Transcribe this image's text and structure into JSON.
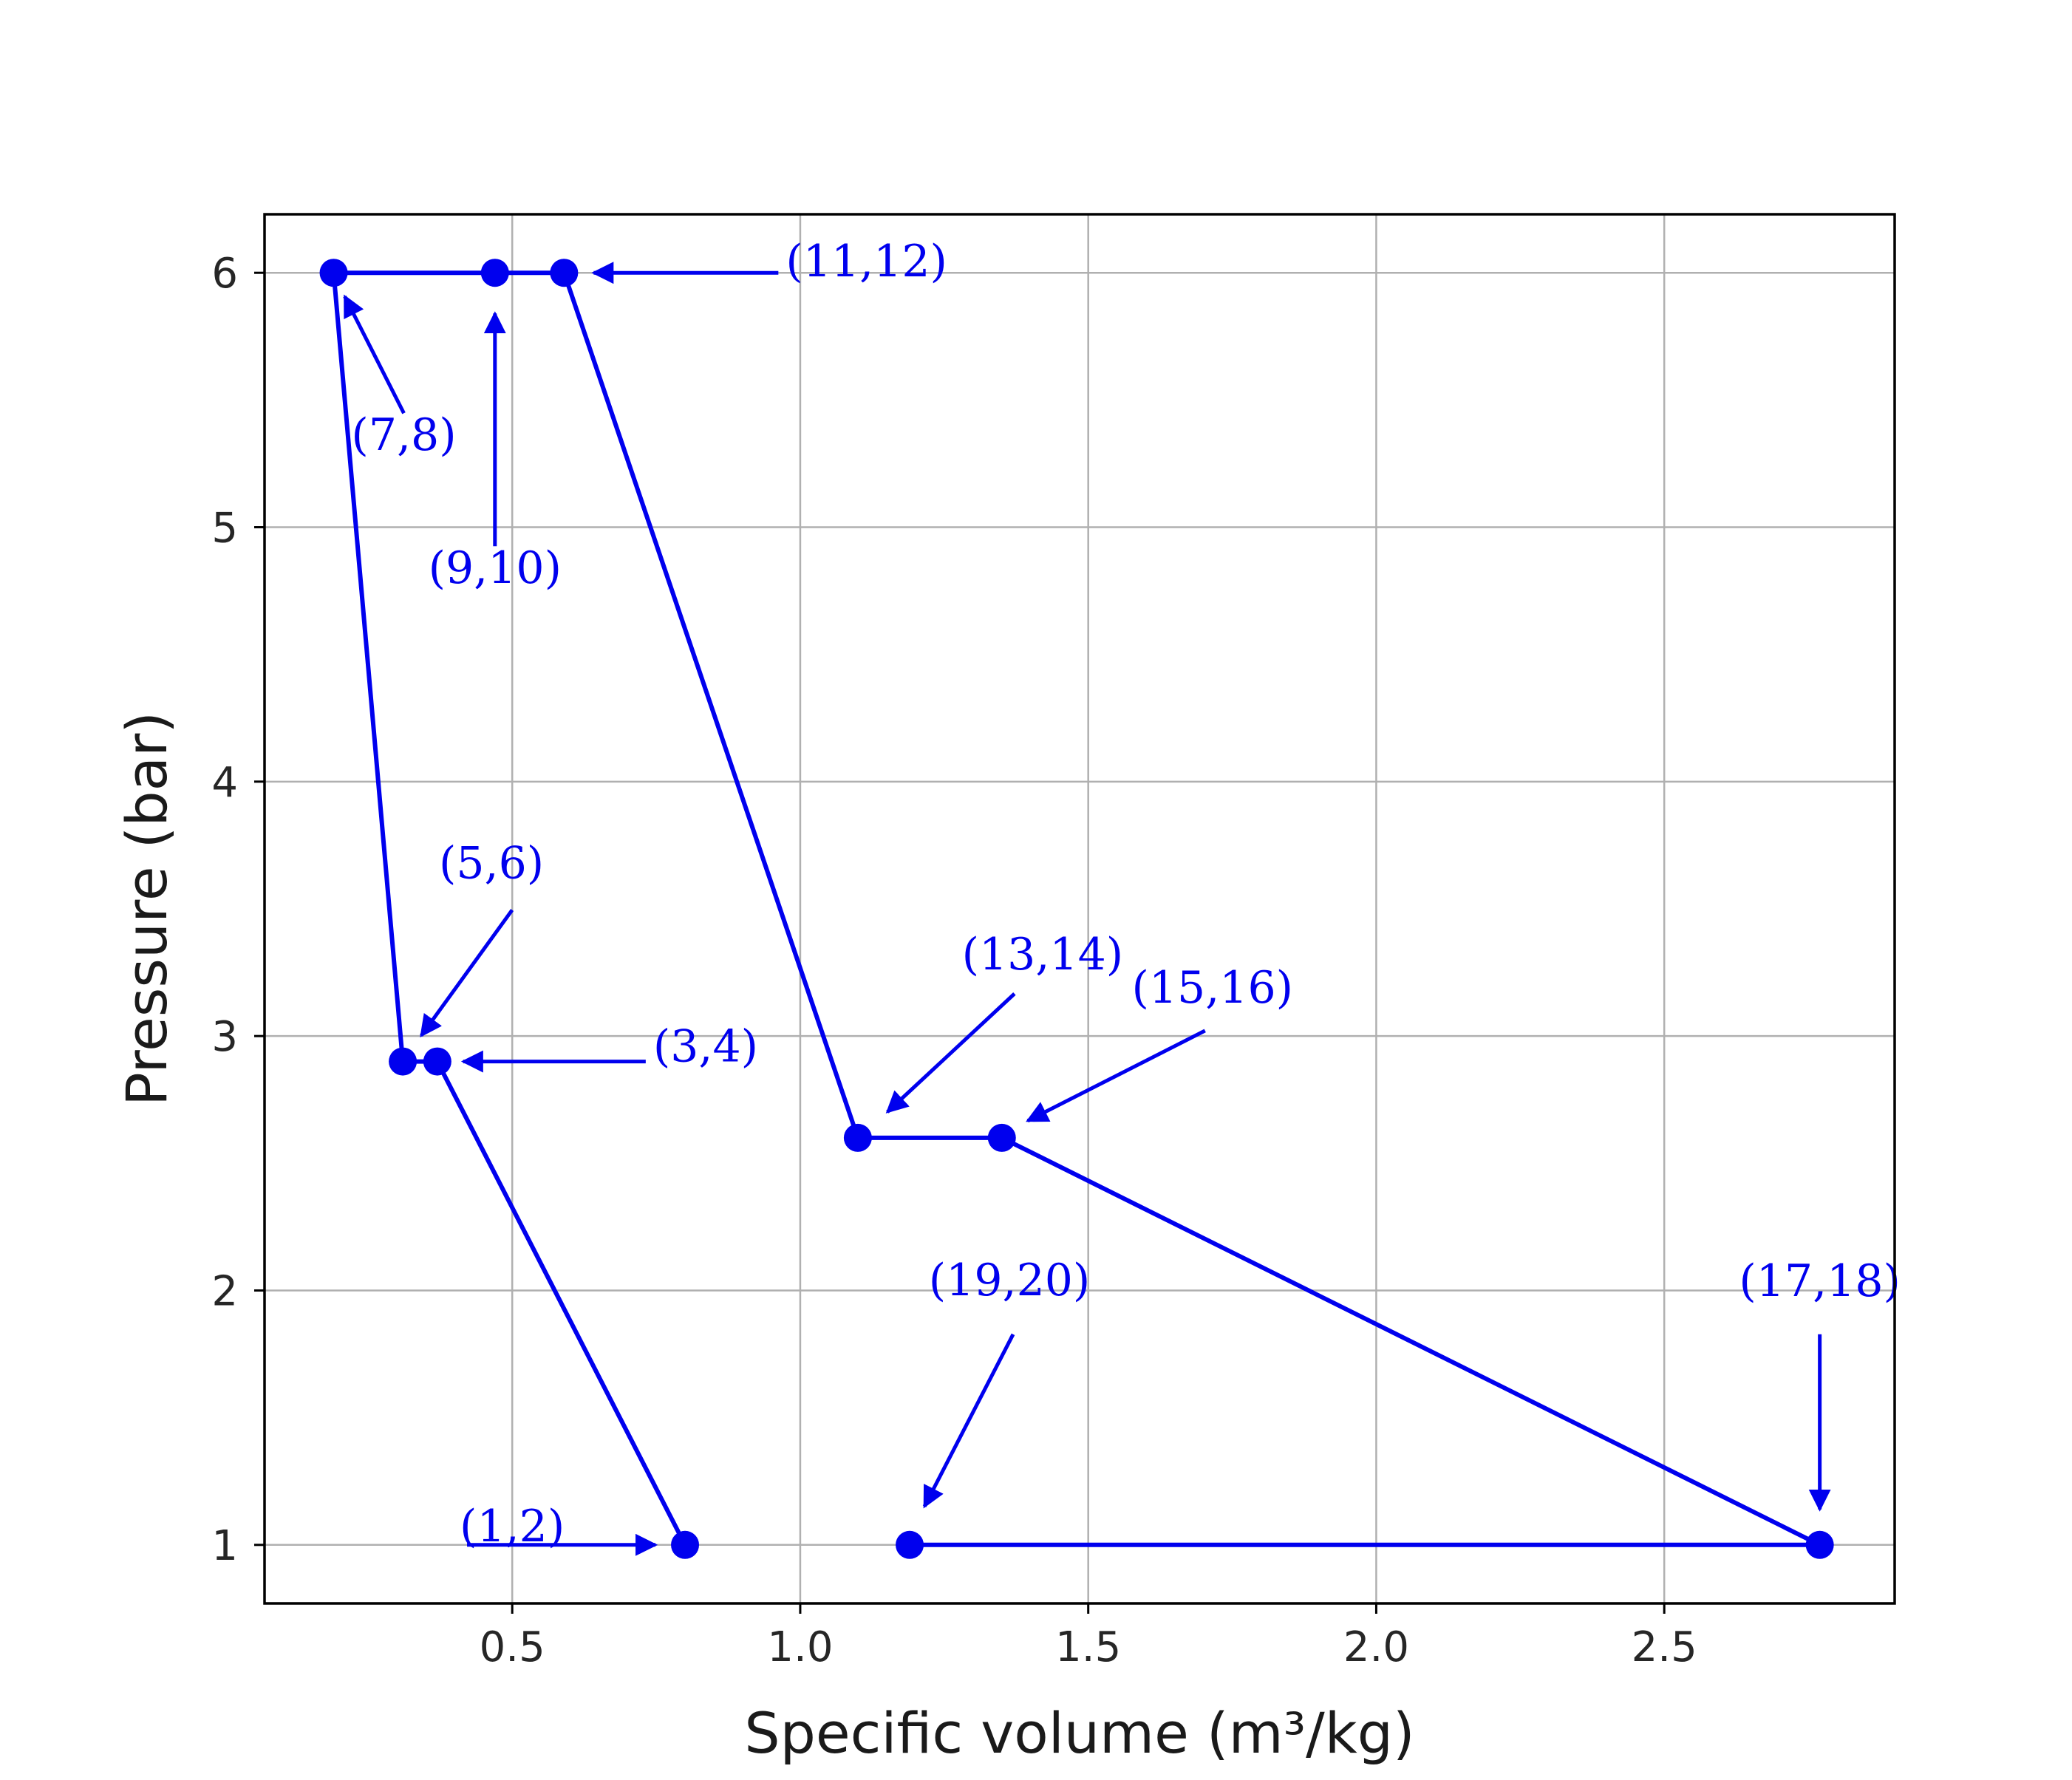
{
  "chart_data": {
    "type": "line",
    "title": "",
    "xlabel": "Specific volume (m³/kg)",
    "ylabel": "Pressure (bar)",
    "xlim": [
      0.07,
      2.9
    ],
    "ylim": [
      0.77,
      6.23
    ],
    "x_ticks": [
      0.5,
      1.0,
      1.5,
      2.0,
      2.5
    ],
    "x_tick_labels": [
      "0.5",
      "1.0",
      "1.5",
      "2.0",
      "2.5"
    ],
    "y_ticks": [
      1,
      2,
      3,
      4,
      5,
      6
    ],
    "y_tick_labels": [
      "1",
      "2",
      "3",
      "4",
      "5",
      "6"
    ],
    "grid": true,
    "line_color": "#0000ee",
    "grid_color": "#b0b0b0",
    "series": [
      {
        "x": [
          0.8,
          0.37,
          0.31,
          0.19,
          0.47,
          0.59,
          1.1,
          1.35,
          2.77,
          1.19
        ],
        "y": [
          1.0,
          2.9,
          2.9,
          6.0,
          6.0,
          6.0,
          2.6,
          2.6,
          1.0,
          1.0
        ]
      }
    ],
    "annotations": [
      {
        "label": "(1,2)",
        "point": [
          0.8,
          1.0
        ]
      },
      {
        "label": "(3,4)",
        "point": [
          0.37,
          2.9
        ]
      },
      {
        "label": "(5,6)",
        "point": [
          0.31,
          2.9
        ]
      },
      {
        "label": "(7,8)",
        "point": [
          0.19,
          6.0
        ]
      },
      {
        "label": "(9,10)",
        "point": [
          0.47,
          6.0
        ]
      },
      {
        "label": "(11,12)",
        "point": [
          0.59,
          6.0
        ]
      },
      {
        "label": "(13,14)",
        "point": [
          1.1,
          2.6
        ]
      },
      {
        "label": "(15,16)",
        "point": [
          1.35,
          2.6
        ]
      },
      {
        "label": "(17,18)",
        "point": [
          2.77,
          1.0
        ]
      },
      {
        "label": "(19,20)",
        "point": [
          1.19,
          1.0
        ]
      }
    ]
  }
}
